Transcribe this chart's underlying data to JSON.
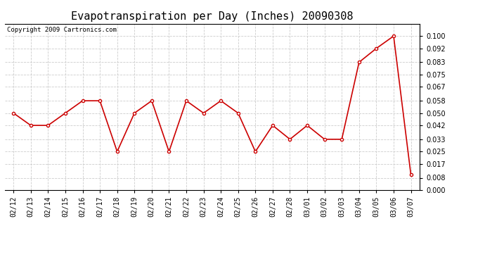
{
  "title": "Evapotranspiration per Day (Inches) 20090308",
  "copyright_text": "Copyright 2009 Cartronics.com",
  "x_labels": [
    "02/12",
    "02/13",
    "02/14",
    "02/15",
    "02/16",
    "02/17",
    "02/18",
    "02/19",
    "02/20",
    "02/21",
    "02/22",
    "02/23",
    "02/24",
    "02/25",
    "02/26",
    "02/27",
    "02/28",
    "03/01",
    "03/02",
    "03/03",
    "03/04",
    "03/05",
    "03/06",
    "03/07"
  ],
  "y_values": [
    0.05,
    0.042,
    0.042,
    0.05,
    0.058,
    0.058,
    0.025,
    0.05,
    0.058,
    0.025,
    0.058,
    0.05,
    0.058,
    0.05,
    0.025,
    0.042,
    0.033,
    0.042,
    0.033,
    0.033,
    0.083,
    0.092,
    0.1,
    0.01
  ],
  "line_color": "#cc0000",
  "marker": "o",
  "marker_size": 3,
  "bg_color": "#ffffff",
  "grid_color": "#cccccc",
  "ylim": [
    0.0,
    0.108
  ],
  "yticks": [
    0.0,
    0.008,
    0.017,
    0.025,
    0.033,
    0.042,
    0.05,
    0.058,
    0.067,
    0.075,
    0.083,
    0.092,
    0.1
  ],
  "title_fontsize": 11,
  "tick_fontsize": 7,
  "copyright_fontsize": 6.5
}
